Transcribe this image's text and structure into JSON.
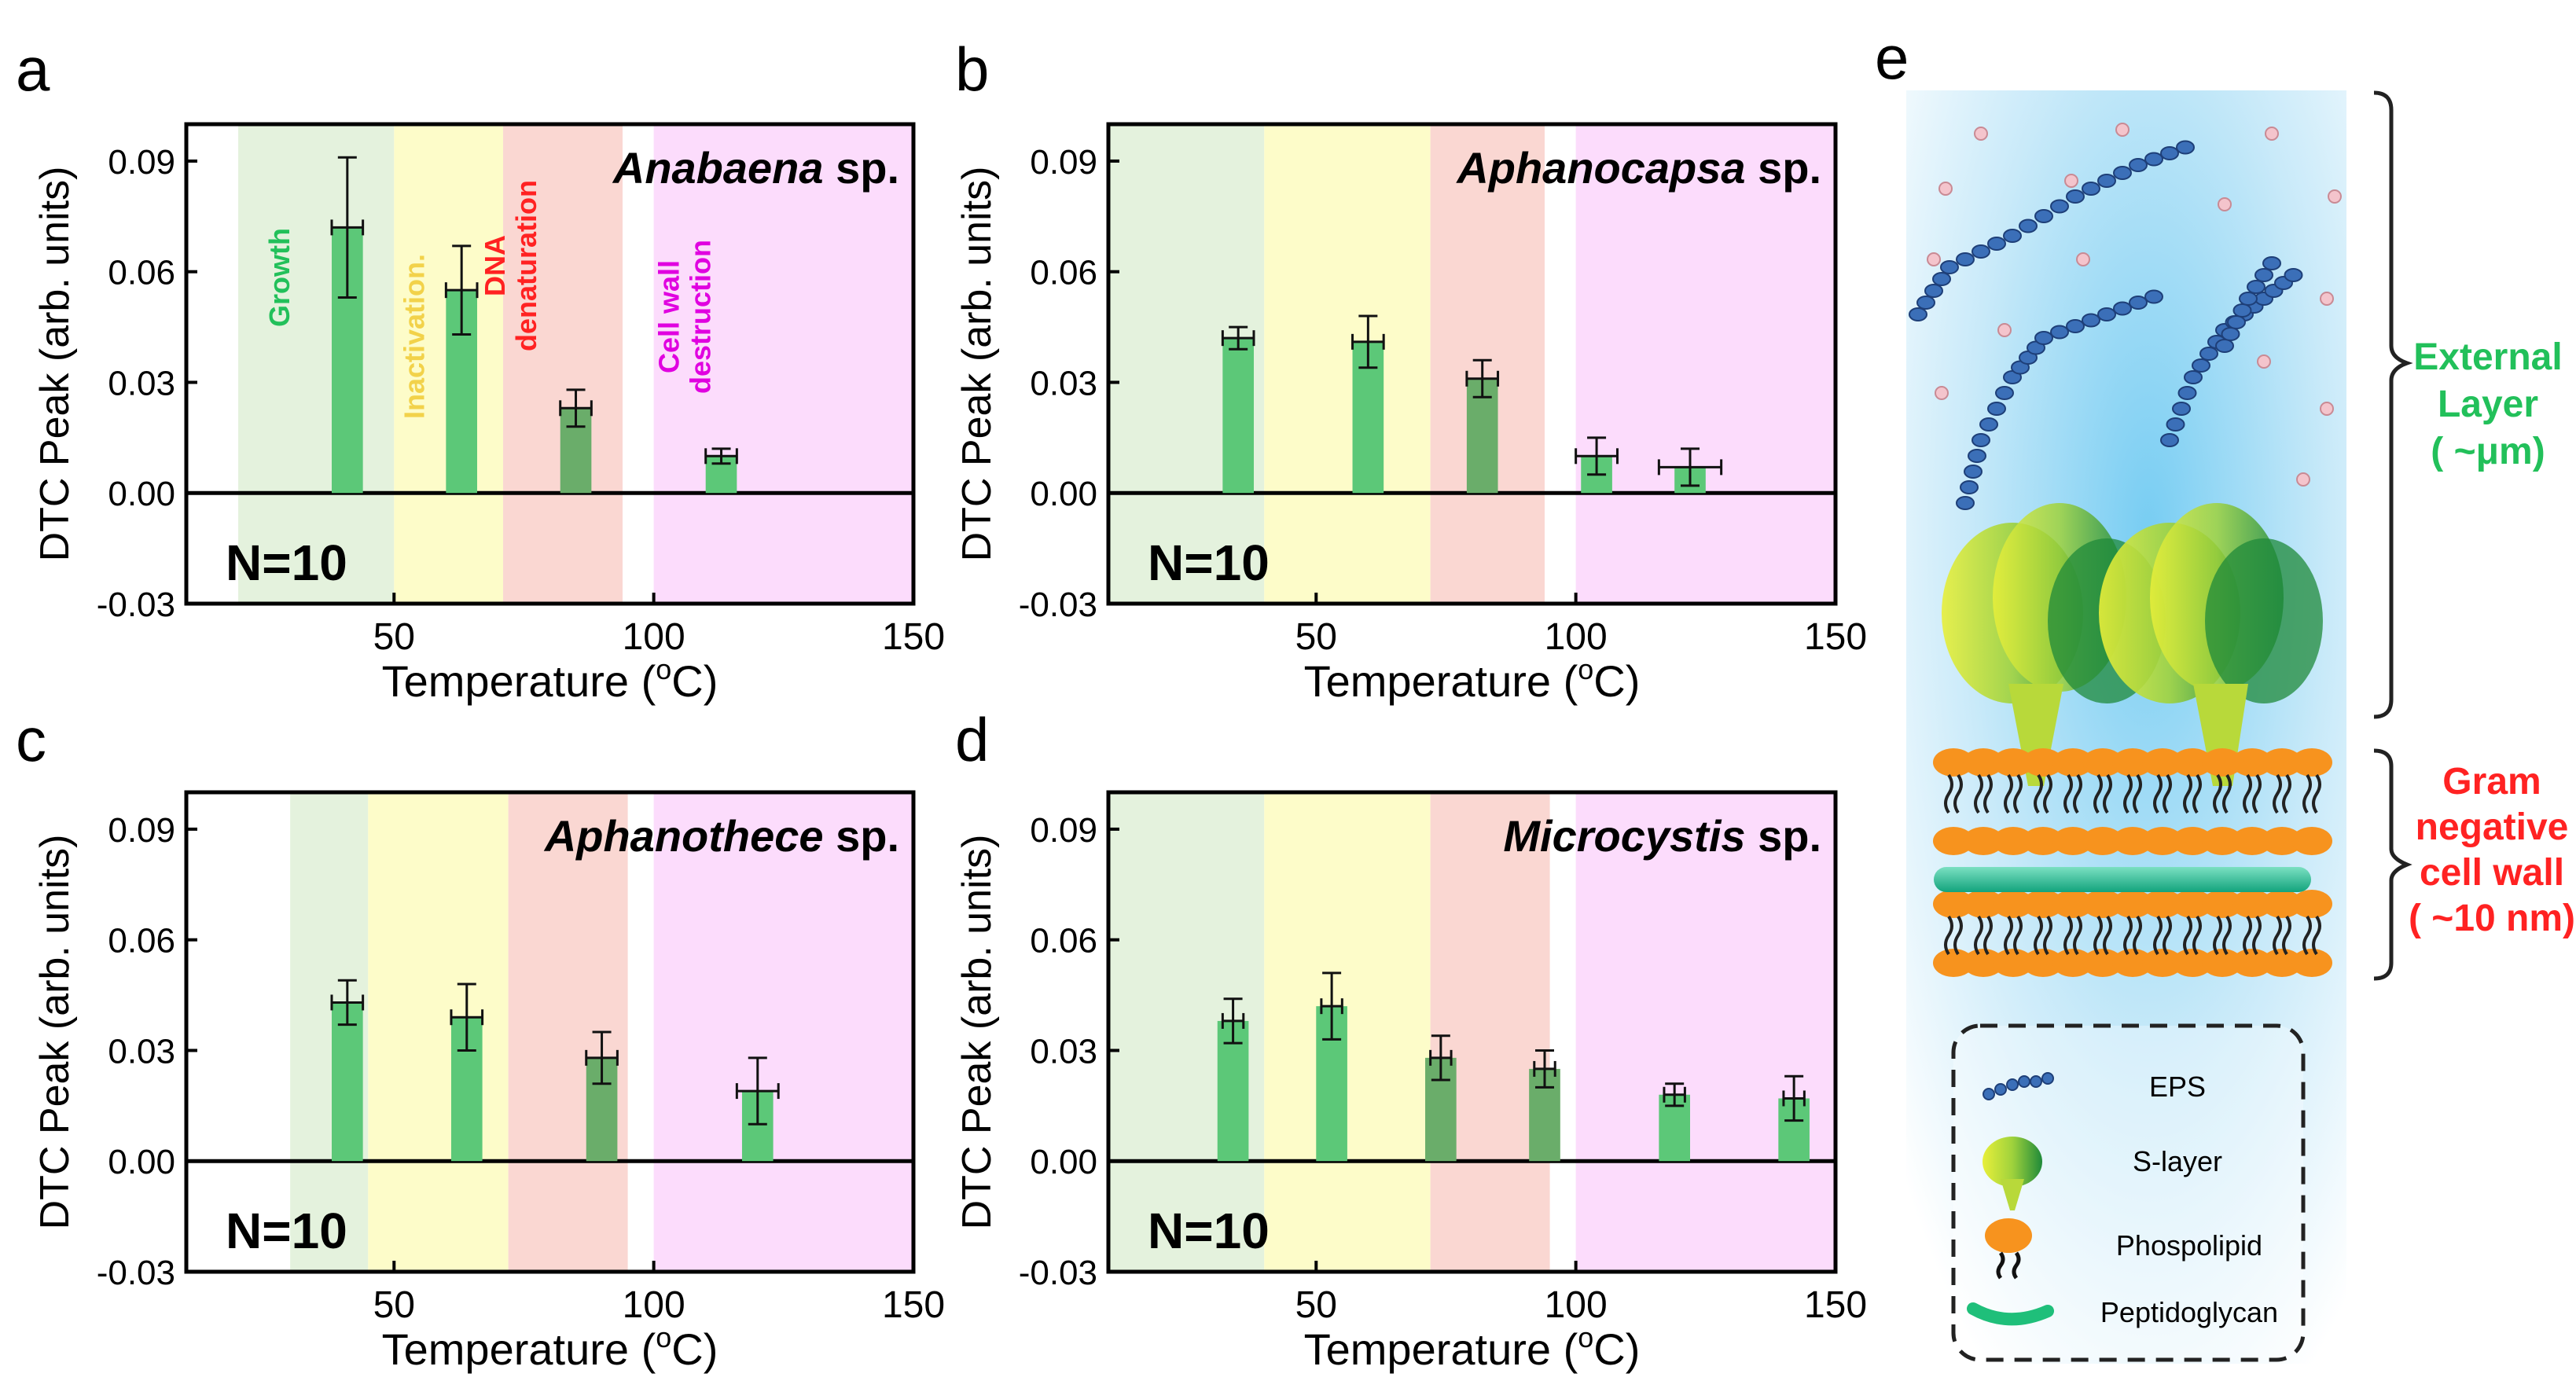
{
  "figure": {
    "shared": {
      "ylabel": "DTC Peak (arb. units)",
      "xlabel": "Temperature (",
      "xlabel_sup": "o",
      "xlabel_tail": "C)",
      "yticks": [
        "0.09",
        "0.06",
        "0.03",
        "0.00",
        "-0.03"
      ],
      "xticks": [
        "50",
        "100",
        "150"
      ],
      "n_label": "N=10",
      "species_suffix": " sp."
    },
    "colors": {
      "growth": "#e4f2dd",
      "inactivation": "#fdfcc9",
      "denaturation": "#fad7d2",
      "destruction": "#fcdcfc",
      "bar_green": "#5cc878",
      "bar_dark": "#6aad6a",
      "green_text": "#22c05a",
      "yellow_text": "#f2d24a",
      "red_text": "#ff2222",
      "magenta_text": "#e000e0"
    },
    "zone_labels": {
      "growth": "Growth",
      "inactivation": "Inactivation.",
      "denaturation_1": "DNA",
      "denaturation_2": "denaturation",
      "destruction_1": "Cell wall",
      "destruction_2": "destruction"
    },
    "diagram": {
      "label": "e",
      "external_layer": [
        "External",
        "Layer",
        "( ~μm)"
      ],
      "cell_wall": [
        "Gram",
        "negative",
        "cell wall",
        "( ~10 nm)"
      ],
      "legend": [
        "EPS",
        "S-layer",
        "Phospolipid",
        "Peptidoglycan"
      ]
    }
  },
  "chart_data": [
    {
      "panel": "a",
      "type": "bar",
      "species": "Anabaena",
      "xlabel": "Temperature (oC)",
      "ylabel": "DTC Peak (arb. units)",
      "xlim": [
        10,
        150
      ],
      "ylim": [
        -0.03,
        0.1
      ],
      "zones": [
        [
          20,
          50
        ],
        [
          50,
          71
        ],
        [
          71,
          94
        ],
        [
          100,
          150
        ]
      ],
      "points": [
        {
          "x": 41,
          "y": 0.072,
          "err": 0.019,
          "xerr": 3
        },
        {
          "x": 63,
          "y": 0.055,
          "err": 0.012,
          "xerr": 3
        },
        {
          "x": 85,
          "y": 0.023,
          "err": 0.005,
          "xerr": 3
        },
        {
          "x": 113,
          "y": 0.01,
          "err": 0.002,
          "xerr": 3
        }
      ]
    },
    {
      "panel": "b",
      "type": "bar",
      "species": "Aphanocapsa",
      "xlabel": "Temperature (oC)",
      "ylabel": "DTC Peak (arb. units)",
      "xlim": [
        10,
        150
      ],
      "ylim": [
        -0.03,
        0.1
      ],
      "zones": [
        [
          10,
          40
        ],
        [
          40,
          72
        ],
        [
          72,
          94
        ],
        [
          100,
          150
        ]
      ],
      "points": [
        {
          "x": 35,
          "y": 0.042,
          "err": 0.003,
          "xerr": 3
        },
        {
          "x": 60,
          "y": 0.041,
          "err": 0.007,
          "xerr": 3
        },
        {
          "x": 82,
          "y": 0.031,
          "err": 0.005,
          "xerr": 3
        },
        {
          "x": 104,
          "y": 0.01,
          "err": 0.005,
          "xerr": 4
        },
        {
          "x": 122,
          "y": 0.007,
          "err": 0.005,
          "xerr": 6
        }
      ]
    },
    {
      "panel": "c",
      "type": "bar",
      "species": "Aphanothece",
      "xlabel": "Temperature (oC)",
      "ylabel": "DTC Peak (arb. units)",
      "xlim": [
        10,
        150
      ],
      "ylim": [
        -0.03,
        0.1
      ],
      "zones": [
        [
          30,
          45
        ],
        [
          45,
          72
        ],
        [
          72,
          95
        ],
        [
          100,
          150
        ]
      ],
      "points": [
        {
          "x": 41,
          "y": 0.043,
          "err": 0.006,
          "xerr": 3
        },
        {
          "x": 64,
          "y": 0.039,
          "err": 0.009,
          "xerr": 3
        },
        {
          "x": 90,
          "y": 0.028,
          "err": 0.007,
          "xerr": 3
        },
        {
          "x": 120,
          "y": 0.019,
          "err": 0.009,
          "xerr": 4
        }
      ]
    },
    {
      "panel": "d",
      "type": "bar",
      "species": "Microcystis",
      "xlabel": "Temperature (oC)",
      "ylabel": "DTC Peak (arb. units)",
      "xlim": [
        10,
        150
      ],
      "ylim": [
        -0.03,
        0.1
      ],
      "zones": [
        [
          10,
          40
        ],
        [
          40,
          72
        ],
        [
          72,
          95
        ],
        [
          100,
          150
        ]
      ],
      "points": [
        {
          "x": 34,
          "y": 0.038,
          "err": 0.006,
          "xerr": 2
        },
        {
          "x": 53,
          "y": 0.042,
          "err": 0.009,
          "xerr": 2
        },
        {
          "x": 74,
          "y": 0.028,
          "err": 0.006,
          "xerr": 2
        },
        {
          "x": 94,
          "y": 0.025,
          "err": 0.005,
          "xerr": 2
        },
        {
          "x": 119,
          "y": 0.018,
          "err": 0.003,
          "xerr": 2
        },
        {
          "x": 142,
          "y": 0.017,
          "err": 0.006,
          "xerr": 2
        }
      ]
    }
  ]
}
